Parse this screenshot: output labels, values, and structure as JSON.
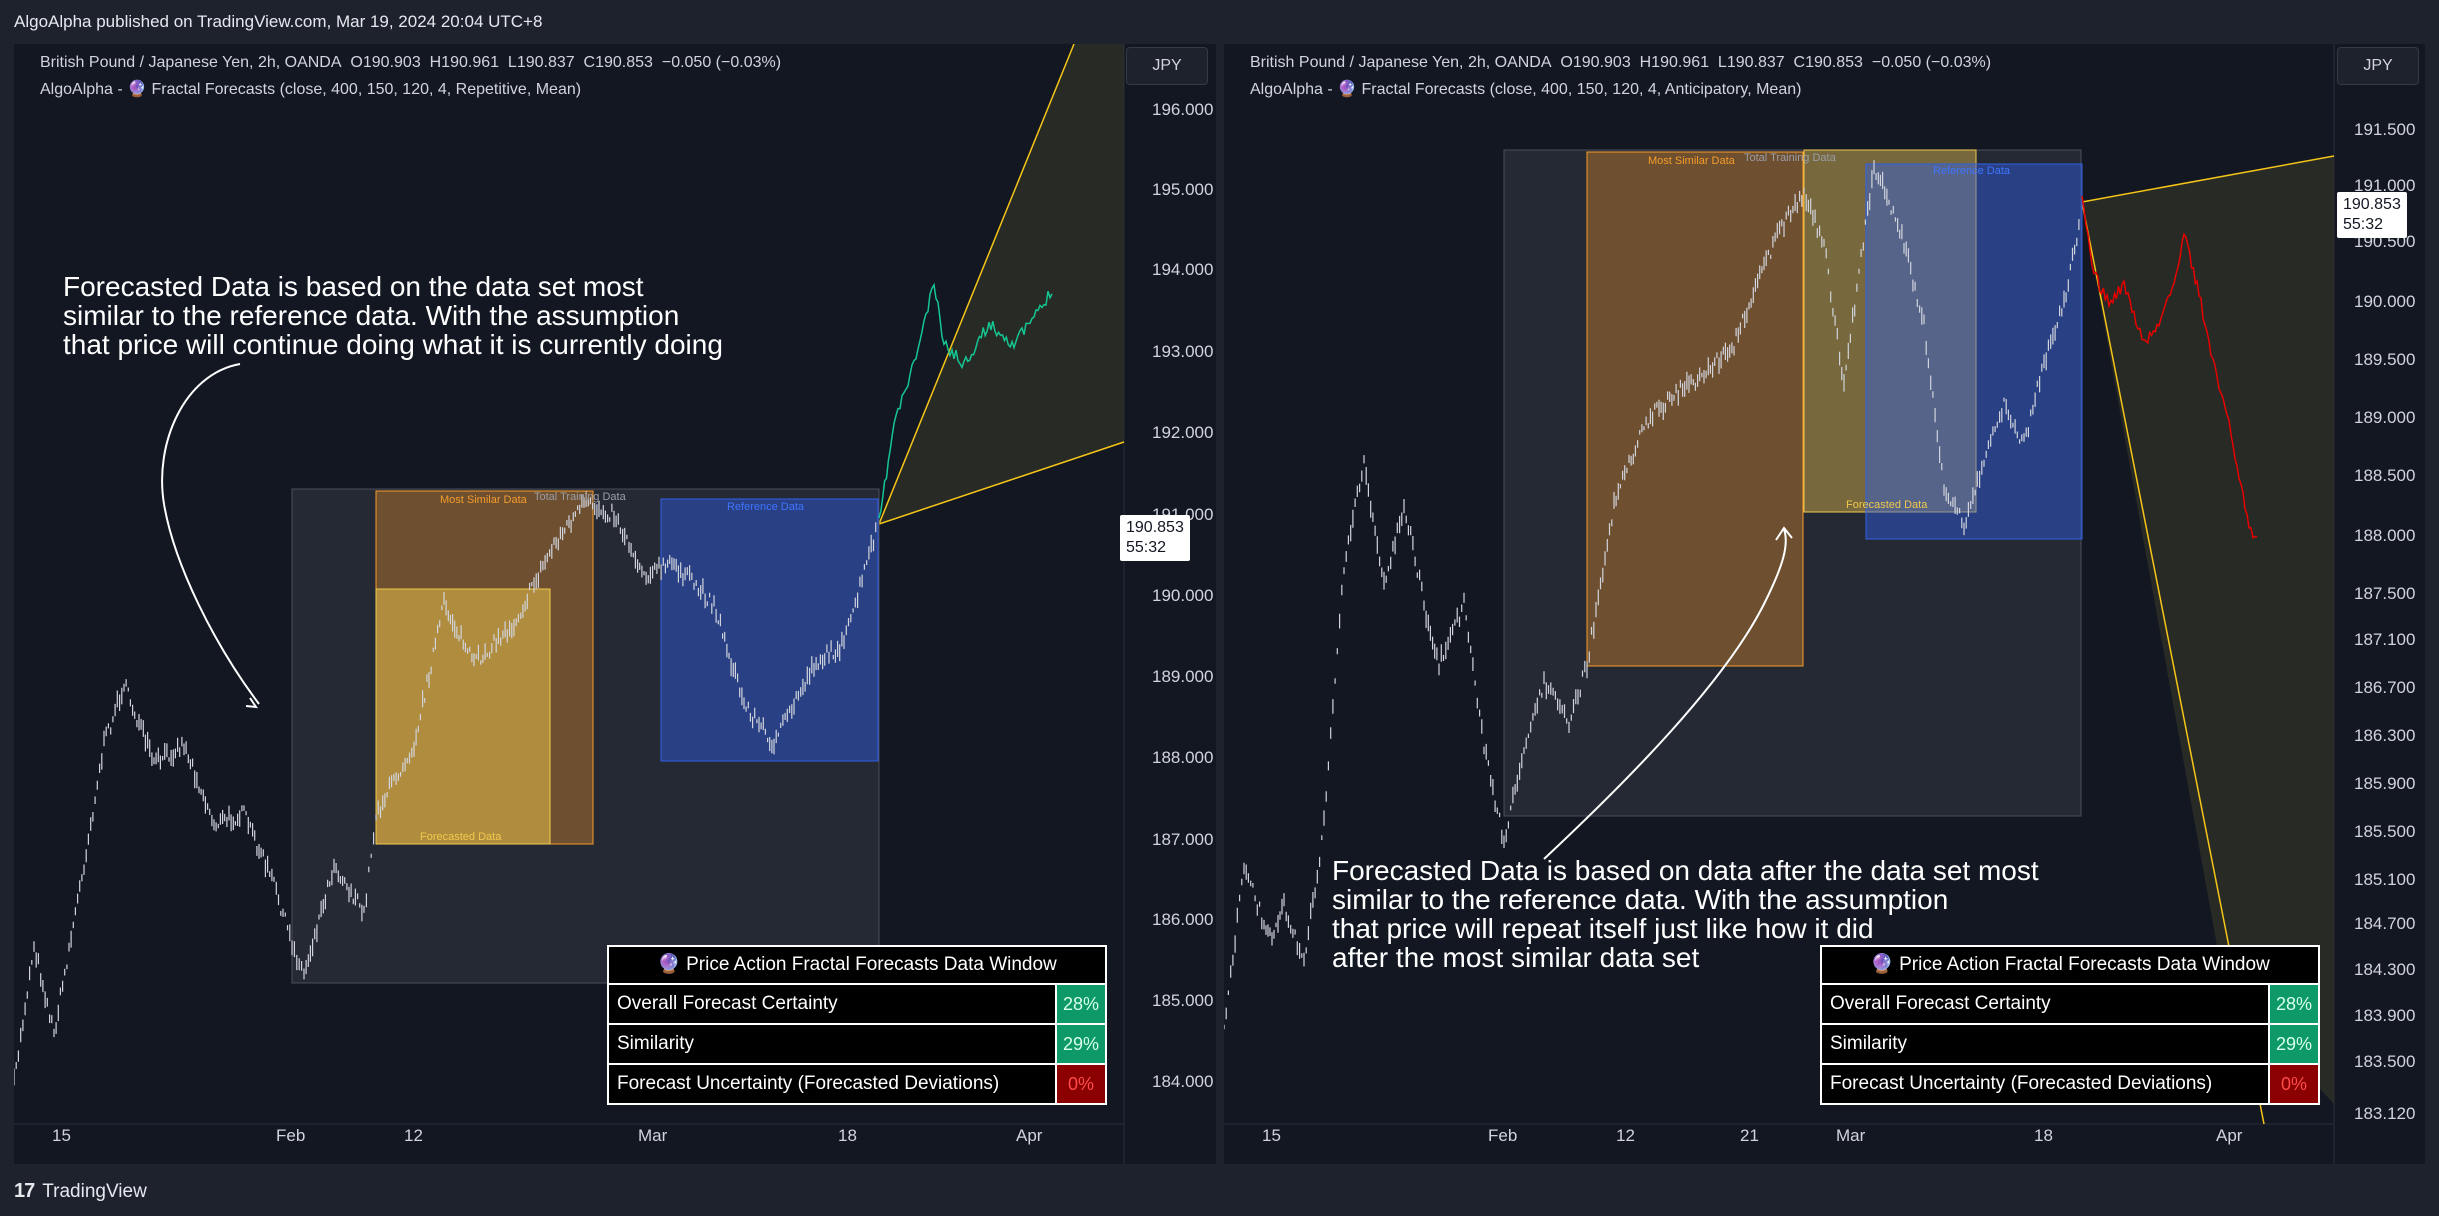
{
  "header": {
    "published": "AlgoAlpha published on TradingView.com, Mar 19, 2024 20:04 UTC+8"
  },
  "footer": {
    "logo_mark": "17",
    "logo_text": "TradingView"
  },
  "colors": {
    "background": "#131722",
    "frame": "#1e222d",
    "candles": "#d1d4dc",
    "most_similar": "#f59c2a",
    "forecasted": "#f2c94c",
    "reference": "#2e5fe6",
    "forecast_up": "#14c792",
    "forecast_down": "#e80000",
    "cone": "#f5c518",
    "certainty_good": "#0e9968",
    "uncertainty_bad": "#8b0000"
  },
  "panels": [
    {
      "symbol": "British Pound / Japanese Yen, 2h, OANDA",
      "o_label": "O",
      "o": "190.903",
      "h_label": "H",
      "h": "190.961",
      "l_label": "L",
      "l": "190.837",
      "c_label": "C",
      "c": "190.853",
      "change": "−0.050 (−0.03%)",
      "indicator": "AlgoAlpha -  🔮 Fractal Forecasts (close, 400, 150, 120, 4, Repetitive, Mean)",
      "currency": "JPY",
      "price_tag": {
        "price": "190.853",
        "countdown": "55:32"
      },
      "y_ticks": [
        "196.000",
        "195.000",
        "194.000",
        "193.000",
        "192.000",
        "191.000",
        "190.000",
        "189.000",
        "188.000",
        "187.000",
        "186.000",
        "185.000",
        "184.000"
      ],
      "x_ticks": [
        "15",
        "Feb",
        "12",
        "Mar",
        "18",
        "Apr"
      ],
      "box_labels": {
        "most_similar": "Most Similar Data",
        "total_training": "Total Training Data",
        "reference": "Reference Data",
        "forecasted": "Forecasted Data"
      },
      "annotation": "Forecasted Data is based on the data set most\nsimilar to the reference data. With the assumption\nthat price will continue doing what it is currently doing",
      "data_window": {
        "title": "🔮 Price Action Fractal Forecasts Data Window",
        "rows": [
          {
            "label": "Overall Forecast Certainty",
            "value": "28%"
          },
          {
            "label": "Similarity",
            "value": "29%"
          },
          {
            "label": "Forecast Uncertainty (Forecasted Deviations)",
            "value": "0%"
          }
        ]
      }
    },
    {
      "symbol": "British Pound / Japanese Yen, 2h, OANDA",
      "o_label": "O",
      "o": "190.903",
      "h_label": "H",
      "h": "190.961",
      "l_label": "L",
      "l": "190.837",
      "c_label": "C",
      "c": "190.853",
      "change": "−0.050 (−0.03%)",
      "indicator": "AlgoAlpha -  🔮 Fractal Forecasts (close, 400, 150, 120, 4, Anticipatory, Mean)",
      "currency": "JPY",
      "price_tag": {
        "price": "190.853",
        "countdown": "55:32"
      },
      "y_ticks": [
        "191.500",
        "191.000",
        "190.500",
        "190.000",
        "189.500",
        "189.000",
        "188.500",
        "188.000",
        "187.500",
        "187.100",
        "186.700",
        "186.300",
        "185.900",
        "185.500",
        "185.100",
        "184.700",
        "184.300",
        "183.900",
        "183.500",
        "183.120"
      ],
      "x_ticks": [
        "15",
        "Feb",
        "12",
        "21",
        "Mar",
        "18",
        "Apr"
      ],
      "box_labels": {
        "most_similar": "Most Similar Data",
        "total_training": "Total Training Data",
        "reference": "Reference Data",
        "forecasted": "Forecasted Data"
      },
      "annotation": "Forecasted Data is based on data after the data set most\nsimilar to the reference data. With the assumption\nthat price will repeat itself just like how it did\nafter the most similar data set",
      "data_window": {
        "title": "🔮 Price Action Fractal Forecasts Data Window",
        "rows": [
          {
            "label": "Overall Forecast Certainty",
            "value": "28%"
          },
          {
            "label": "Similarity",
            "value": "29%"
          },
          {
            "label": "Forecast Uncertainty (Forecasted Deviations)",
            "value": "0%"
          }
        ]
      }
    }
  ]
}
